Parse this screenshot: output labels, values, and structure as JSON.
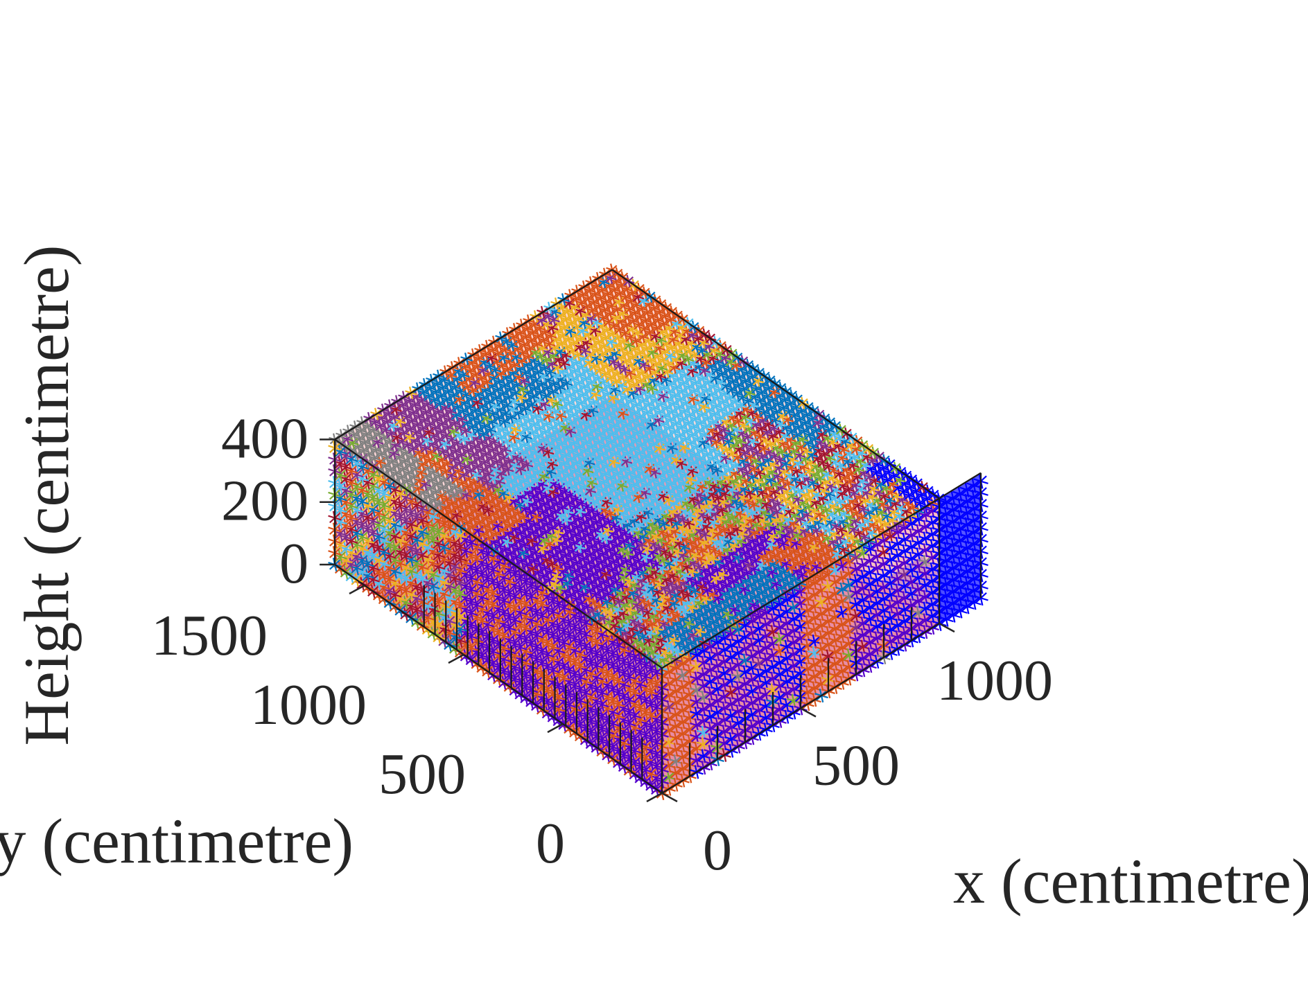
{
  "chart_data": {
    "type": "scatter",
    "title": "",
    "xlabel": "x (centimetre)",
    "ylabel": "y (centimetre)",
    "zlabel": "Height (centimetre)",
    "xlim": [
      0,
      1200
    ],
    "ylim": [
      0,
      1700
    ],
    "zlim": [
      0,
      400
    ],
    "x_ticks": [
      0,
      500,
      1000
    ],
    "y_ticks": [
      0,
      500,
      1000,
      1500
    ],
    "z_ticks": [
      0,
      200,
      400
    ],
    "x_tick_labels": [
      "0",
      "500",
      "1000"
    ],
    "y_tick_labels": [
      "0",
      "500",
      "1000",
      "1500"
    ],
    "z_tick_labels": [
      "0",
      "200",
      "400"
    ],
    "marker": "asterisk",
    "grid": true,
    "room": {
      "face_color": "#ff4d4d",
      "floor_color": "#c070b0",
      "alcove_color": "#3a3aff",
      "edge_color": "#1a1a1a"
    },
    "series_colors": [
      "#4DBEEE",
      "#0072BD",
      "#7E2F8E",
      "#D95319",
      "#EDB120",
      "#A2142F",
      "#77AC30",
      "#0000FF",
      "#5500CC",
      "#808080"
    ],
    "regions": [
      {
        "x": [
          200,
          700
        ],
        "y": [
          600,
          1400
        ],
        "z": [
          100,
          400
        ],
        "color": "#4DBEEE"
      },
      {
        "x": [
          500,
          900
        ],
        "y": [
          800,
          1100
        ],
        "z": [
          0,
          400
        ],
        "color": "#4DBEEE"
      },
      {
        "x": [
          700,
          950
        ],
        "y": [
          1150,
          1600
        ],
        "z": [
          200,
          400
        ],
        "color": "#EDB120"
      },
      {
        "x": [
          850,
          1000
        ],
        "y": [
          1300,
          1650
        ],
        "z": [
          200,
          400
        ],
        "color": "#D95319"
      },
      {
        "x": [
          900,
          1000
        ],
        "y": [
          500,
          1000
        ],
        "z": [
          100,
          400
        ],
        "color": "#0072BD"
      },
      {
        "x": [
          0,
          300
        ],
        "y": [
          1100,
          1650
        ],
        "z": [
          200,
          400
        ],
        "color": "#7E2F8E"
      },
      {
        "x": [
          300,
          600
        ],
        "y": [
          1300,
          1650
        ],
        "z": [
          200,
          400
        ],
        "color": "#0072BD"
      },
      {
        "x": [
          400,
          700
        ],
        "y": [
          1500,
          1700
        ],
        "z": [
          300,
          400
        ],
        "color": "#D95319"
      },
      {
        "x": [
          0,
          300
        ],
        "y": [
          400,
          1000
        ],
        "z": [
          0,
          200
        ],
        "color": "#5500CC"
      },
      {
        "x": [
          0,
          150
        ],
        "y": [
          900,
          1400
        ],
        "z": [
          0,
          200
        ],
        "color": "#D95319"
      },
      {
        "x": [
          0,
          120
        ],
        "y": [
          1150,
          1700
        ],
        "z": [
          0,
          250
        ],
        "color": "#808080"
      },
      {
        "x": [
          300,
          600
        ],
        "y": [
          0,
          300
        ],
        "z": [
          0,
          300
        ],
        "color": "#5500CC"
      },
      {
        "x": [
          500,
          650
        ],
        "y": [
          0,
          200
        ],
        "z": [
          0,
          300
        ],
        "color": "#D95319"
      },
      {
        "x": [
          950,
          1150
        ],
        "y": [
          0,
          300
        ],
        "z": [
          0,
          300
        ],
        "color": "#0000FF"
      },
      {
        "x": [
          100,
          500
        ],
        "y": [
          0,
          150
        ],
        "z": [
          0,
          250
        ],
        "color": "#0072BD"
      }
    ]
  }
}
